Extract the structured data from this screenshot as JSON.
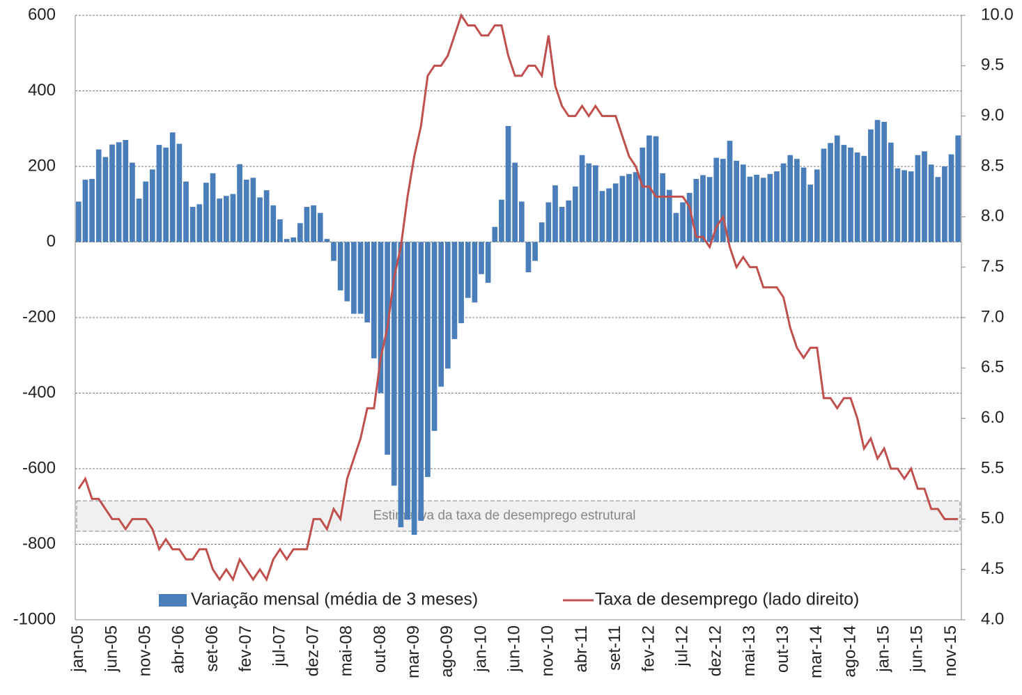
{
  "chart_data": {
    "type": "bar-line",
    "categories": [
      "jan-05",
      null,
      null,
      null,
      null,
      "jun-05",
      null,
      null,
      null,
      null,
      "nov-05",
      null,
      null,
      null,
      null,
      "abr-06",
      null,
      null,
      null,
      null,
      "set-06",
      null,
      null,
      null,
      null,
      "fev-07",
      null,
      null,
      null,
      null,
      "jul-07",
      null,
      null,
      null,
      null,
      "dez-07",
      null,
      null,
      null,
      null,
      "mai-08",
      null,
      null,
      null,
      null,
      "out-08",
      null,
      null,
      null,
      null,
      "mar-09",
      null,
      null,
      null,
      null,
      "ago-09",
      null,
      null,
      null,
      null,
      "jan-10",
      null,
      null,
      null,
      null,
      "jun-10",
      null,
      null,
      null,
      null,
      "nov-10",
      null,
      null,
      null,
      null,
      "abr-11",
      null,
      null,
      null,
      null,
      "set-11",
      null,
      null,
      null,
      null,
      "fev-12",
      null,
      null,
      null,
      null,
      "jul-12",
      null,
      null,
      null,
      null,
      "dez-12",
      null,
      null,
      null,
      null,
      "mai-13",
      null,
      null,
      null,
      null,
      "out-13",
      null,
      null,
      null,
      null,
      "mar-14",
      null,
      null,
      null,
      null,
      "ago-14",
      null,
      null,
      null,
      null,
      "jan-15",
      null,
      null,
      null,
      null,
      "jun-15",
      null,
      null,
      null,
      null,
      "nov-15",
      null
    ],
    "series": [
      {
        "name": "Variação mensal (média de 3 meses)",
        "type": "bar",
        "color": "#4a7ebb",
        "axis": "y",
        "values": [
          107,
          165,
          167,
          245,
          225,
          258,
          264,
          270,
          210,
          115,
          160,
          192,
          257,
          250,
          290,
          260,
          160,
          93,
          100,
          157,
          182,
          115,
          122,
          127,
          206,
          165,
          170,
          118,
          137,
          97,
          60,
          8,
          12,
          50,
          93,
          97,
          77,
          8,
          -50,
          -128,
          -157,
          -190,
          -190,
          -213,
          -308,
          -400,
          -563,
          -645,
          -755,
          -735,
          -775,
          -738,
          -622,
          -500,
          -383,
          -335,
          -257,
          -215,
          -148,
          -160,
          -85,
          -108,
          40,
          112,
          307,
          210,
          107,
          -80,
          -50,
          52,
          105,
          150,
          93,
          110,
          147,
          230,
          208,
          203,
          135,
          142,
          155,
          175,
          180,
          185,
          250,
          282,
          280,
          182,
          138,
          77,
          105,
          130,
          167,
          177,
          172,
          223,
          220,
          268,
          215,
          205,
          173,
          178,
          170,
          180,
          187,
          208,
          230,
          220,
          197,
          152,
          192,
          247,
          262,
          282,
          257,
          250,
          237,
          228,
          298,
          323,
          318,
          263,
          195,
          190,
          187,
          230,
          240,
          205,
          172,
          200,
          232,
          282
        ]
      },
      {
        "name": "Taxa de desemprego (lado direito)",
        "type": "line",
        "color": "#c0504d",
        "axis": "y2",
        "values": [
          5.3,
          5.4,
          5.2,
          5.2,
          5.1,
          5.0,
          5.0,
          4.9,
          5.0,
          5.0,
          5.0,
          4.9,
          4.7,
          4.8,
          4.7,
          4.7,
          4.6,
          4.6,
          4.7,
          4.7,
          4.5,
          4.4,
          4.5,
          4.4,
          4.6,
          4.5,
          4.4,
          4.5,
          4.4,
          4.6,
          4.7,
          4.6,
          4.7,
          4.7,
          4.7,
          5.0,
          5.0,
          4.9,
          5.1,
          5.0,
          5.4,
          5.6,
          5.8,
          6.1,
          6.1,
          6.6,
          6.9,
          7.4,
          7.7,
          8.2,
          8.6,
          8.9,
          9.4,
          9.5,
          9.5,
          9.6,
          9.8,
          10.0,
          9.9,
          9.9,
          9.8,
          9.8,
          9.9,
          9.9,
          9.6,
          9.4,
          9.4,
          9.5,
          9.5,
          9.4,
          9.8,
          9.3,
          9.1,
          9.0,
          9.0,
          9.1,
          9.0,
          9.1,
          9.0,
          9.0,
          9.0,
          8.8,
          8.6,
          8.5,
          8.3,
          8.3,
          8.2,
          8.2,
          8.2,
          8.2,
          8.2,
          8.1,
          7.8,
          7.8,
          7.7,
          7.9,
          8.0,
          7.7,
          7.5,
          7.6,
          7.5,
          7.5,
          7.3,
          7.3,
          7.3,
          7.2,
          6.9,
          6.7,
          6.6,
          6.7,
          6.7,
          6.2,
          6.2,
          6.1,
          6.2,
          6.2,
          6.0,
          5.7,
          5.8,
          5.6,
          5.7,
          5.5,
          5.5,
          5.4,
          5.5,
          5.3,
          5.3,
          5.1,
          5.1,
          5.0,
          5.0,
          5.0
        ]
      }
    ],
    "ylim": [
      -1000,
      600
    ],
    "yticks": [
      -1000,
      -800,
      -600,
      -400,
      -200,
      0,
      200,
      400,
      600
    ],
    "y2lim": [
      4.0,
      10.0
    ],
    "y2ticks": [
      {
        "value": 4,
        "label": "4.0"
      },
      4.5,
      {
        "value": 5,
        "label": "5.0"
      },
      5.5,
      {
        "value": 6,
        "label": "6.0"
      },
      6.5,
      {
        "value": 7,
        "label": "7.0"
      },
      7.5,
      {
        "value": 8,
        "label": "8.0"
      },
      8.5,
      {
        "value": 9,
        "label": "9.0"
      },
      9.5,
      {
        "value": 10,
        "label": "10.0"
      }
    ],
    "grid": true,
    "legend": "bottom",
    "band": {
      "label": "Estimativa da taxa de desemprego  estrutural",
      "range": [
        4.88,
        5.18
      ],
      "axis": "y2"
    }
  }
}
